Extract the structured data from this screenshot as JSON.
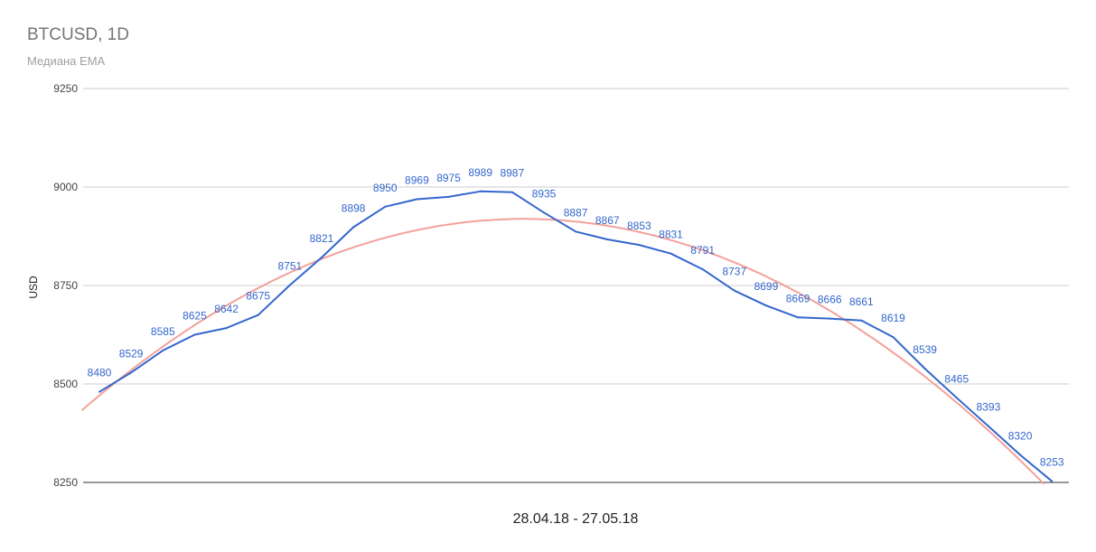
{
  "chart_data": {
    "type": "line",
    "title": "BTCUSD, 1D",
    "subtitle": "Медиана EMA",
    "xlabel": "28.04.18 - 27.05.18",
    "ylabel": "USD",
    "ylim": [
      8250,
      9250
    ],
    "yticks": [
      "8250",
      "8500",
      "8750",
      "9000",
      "9250"
    ],
    "grid": true,
    "legend": "none",
    "series": [
      {
        "values": [
          8480,
          8529,
          8585,
          8625,
          8642,
          8675,
          8751,
          8821,
          8898,
          8950,
          8969,
          8975,
          8989,
          8987,
          8935,
          8887,
          8867,
          8853,
          8831,
          8791,
          8737,
          8699,
          8669,
          8666,
          8661,
          8619,
          8539,
          8465,
          8393,
          8320,
          8253
        ],
        "color": "#3366cc",
        "data_labels": true
      }
    ],
    "trendline": {
      "type": "polynomial",
      "color": "#f4a19a"
    }
  }
}
